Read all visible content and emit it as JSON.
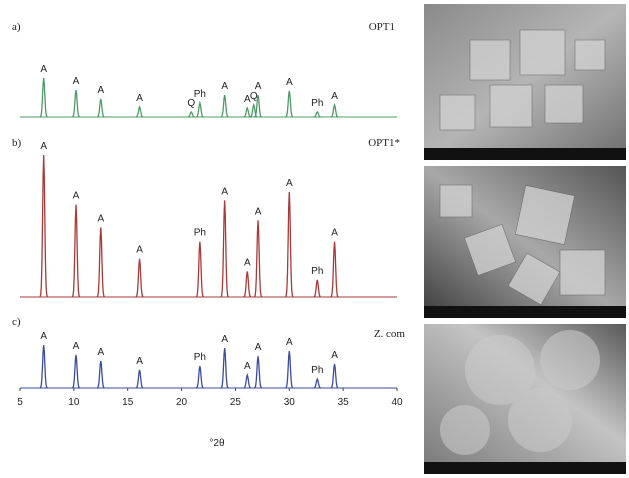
{
  "chart_data": [
    {
      "type": "xrd",
      "panel_label": "a)",
      "sample": "OPT1",
      "color": "#4f9a68",
      "xlim": [
        5,
        40
      ],
      "ylim": [
        0,
        100
      ],
      "x": [
        7.2,
        10.2,
        12.5,
        16.1,
        20.9,
        21.7,
        24.0,
        26.1,
        26.7,
        27.1,
        30.0,
        32.6,
        34.2
      ],
      "values": [
        100,
        69,
        46,
        26,
        13,
        36,
        56,
        23,
        31,
        56,
        67,
        13,
        31
      ],
      "peak_labels": [
        "A",
        "A",
        "A",
        "A",
        "Q",
        "Ph",
        "A",
        "A",
        "Q",
        "A",
        "A",
        "Ph",
        "A"
      ]
    },
    {
      "type": "xrd",
      "panel_label": "b)",
      "sample": "OPT1*",
      "color": "#a83a3a",
      "xlim": [
        5,
        40
      ],
      "ylim": [
        0,
        100
      ],
      "x": [
        7.2,
        10.2,
        12.5,
        16.1,
        21.7,
        24.0,
        26.1,
        27.1,
        30.0,
        32.6,
        34.2
      ],
      "values": [
        100,
        65,
        49,
        27,
        39,
        68,
        18,
        54,
        74,
        12,
        39
      ],
      "peak_labels": [
        "A",
        "A",
        "A",
        "A",
        "Ph",
        "A",
        "A",
        "A",
        "A",
        "Ph",
        "A"
      ]
    },
    {
      "type": "xrd",
      "panel_label": "c)",
      "sample": "Z. com",
      "color": "#3b4c9c",
      "xlim": [
        5,
        40
      ],
      "ylim": [
        0,
        100
      ],
      "x": [
        7.2,
        10.2,
        12.5,
        16.1,
        21.7,
        24.0,
        26.1,
        27.1,
        30.0,
        32.6,
        34.2
      ],
      "values": [
        100,
        77,
        63,
        42,
        51,
        93,
        30,
        74,
        86,
        21,
        56
      ],
      "peak_labels": [
        "A",
        "A",
        "A",
        "A",
        "Ph",
        "A",
        "A",
        "A",
        "A",
        "Ph",
        "A"
      ],
      "xticks": [
        5,
        10,
        15,
        20,
        25,
        30,
        35,
        40
      ],
      "xlabel": "°2θ"
    }
  ]
}
